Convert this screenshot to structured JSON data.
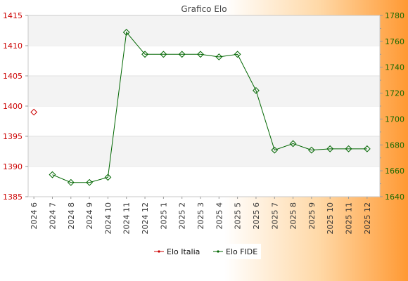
{
  "chart_data": {
    "type": "line",
    "title": "Grafico Elo",
    "categories": [
      "2024 6",
      "2024 7",
      "2024 8",
      "2024 9",
      "2024 10",
      "2024 11",
      "2024 12",
      "2025 1",
      "2025 2",
      "2025 3",
      "2025 4",
      "2025 5",
      "2025 6",
      "2025 7",
      "2025 8",
      "2025 9",
      "2025 10",
      "2025 11",
      "2025 12"
    ],
    "y_left": {
      "min": 1385,
      "max": 1415,
      "ticks": [
        1385,
        1390,
        1395,
        1400,
        1405,
        1410,
        1415
      ],
      "color": "#cc0000"
    },
    "y_right": {
      "min": 1640,
      "max": 1780,
      "ticks": [
        1640,
        1660,
        1680,
        1700,
        1720,
        1740,
        1760,
        1780
      ],
      "color": "#1a6a00"
    },
    "grid": true,
    "legend_position": "bottom",
    "series": [
      {
        "name": "Elo Italia",
        "axis": "left",
        "color": "#cc0000",
        "values": [
          1399,
          null,
          null,
          null,
          null,
          null,
          null,
          null,
          null,
          null,
          null,
          null,
          null,
          null,
          null,
          null,
          null,
          null,
          null
        ]
      },
      {
        "name": "Elo FIDE",
        "axis": "right",
        "color": "#006600",
        "values": [
          null,
          1657,
          1651,
          1651,
          1655,
          1767,
          1750,
          1750,
          1750,
          1750,
          1748,
          1750,
          1722,
          1676,
          1681,
          1676,
          1677,
          1677,
          1677
        ]
      }
    ]
  }
}
